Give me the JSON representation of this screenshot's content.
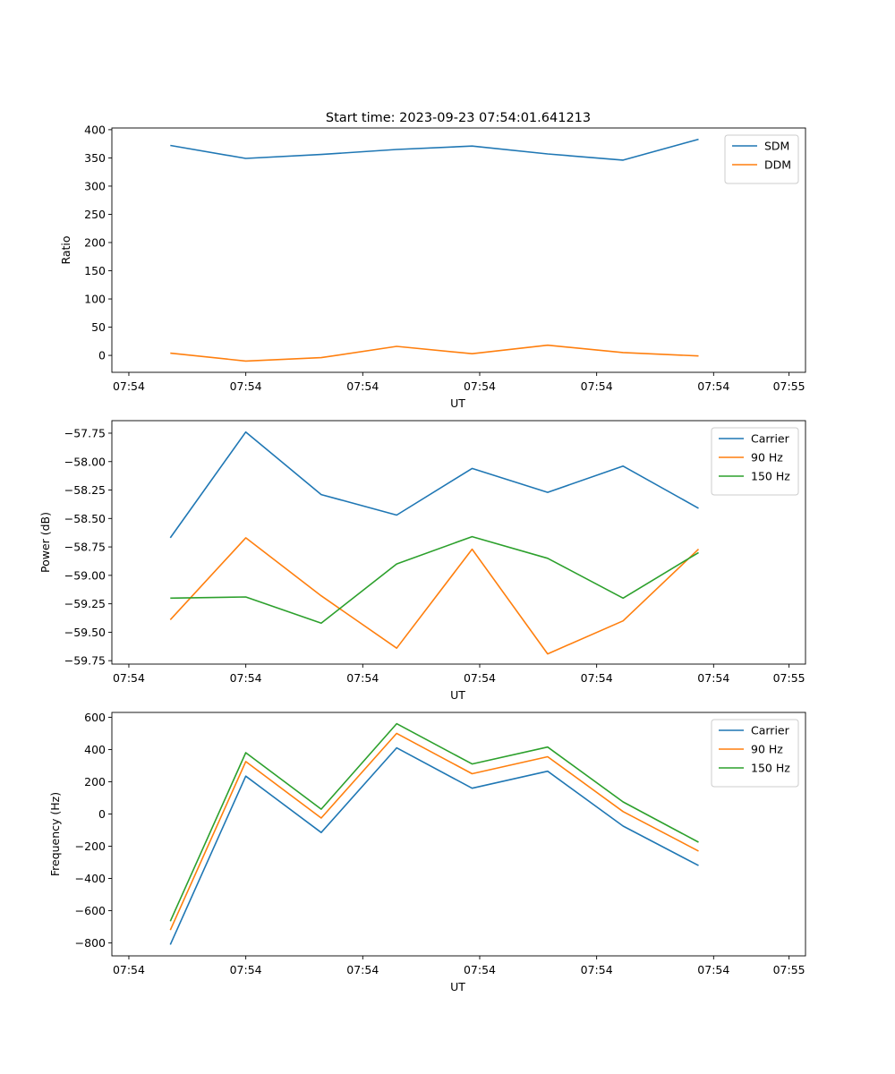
{
  "figure_title": "Start time: 2023-09-23 07:54:01.641213",
  "colors": {
    "blue": "#1f77b4",
    "orange": "#ff7f0e",
    "green": "#2ca02c"
  },
  "chart_data": [
    {
      "type": "line",
      "title": "Start time: 2023-09-23 07:54:01.641213",
      "xlabel": "UT",
      "ylabel": "Ratio",
      "x": [
        1,
        2,
        3,
        4,
        5,
        6,
        7,
        8
      ],
      "xlim": [
        0.225,
        9.418
      ],
      "xticks": [
        0.45,
        2,
        3.55,
        5.1,
        6.65,
        8.2,
        9.2
      ],
      "xticklabels": [
        "07:54",
        "07:54",
        "07:54",
        "07:54",
        "07:54",
        "07:54",
        "07:55"
      ],
      "ylim": [
        -30,
        403
      ],
      "yticks": [
        0,
        50,
        100,
        150,
        200,
        250,
        300,
        350,
        400
      ],
      "yticklabels": [
        "0",
        "50",
        "100",
        "150",
        "200",
        "250",
        "300",
        "350",
        "400"
      ],
      "legend_position": "top-right",
      "series": [
        {
          "name": "SDM",
          "color": "#1f77b4",
          "values": [
            372,
            349,
            356,
            365,
            371,
            357,
            346,
            383
          ]
        },
        {
          "name": "DDM",
          "color": "#ff7f0e",
          "values": [
            4,
            -10,
            -4,
            16,
            3,
            18,
            5,
            -1
          ]
        }
      ]
    },
    {
      "type": "line",
      "title": "",
      "xlabel": "UT",
      "ylabel": "Power (dB)",
      "x": [
        1,
        2,
        3,
        4,
        5,
        6,
        7,
        8
      ],
      "xlim": [
        0.225,
        9.418
      ],
      "xticks": [
        0.45,
        2,
        3.55,
        5.1,
        6.65,
        8.2,
        9.2
      ],
      "xticklabels": [
        "07:54",
        "07:54",
        "07:54",
        "07:54",
        "07:54",
        "07:54",
        "07:55"
      ],
      "ylim": [
        -59.78,
        -57.64
      ],
      "yticks": [
        -59.75,
        -59.5,
        -59.25,
        -59.0,
        -58.75,
        -58.5,
        -58.25,
        -58.0,
        -57.75
      ],
      "yticklabels": [
        "−59.75",
        "−59.50",
        "−59.25",
        "−59.00",
        "−58.75",
        "−58.50",
        "−58.25",
        "−58.00",
        "−57.75"
      ],
      "legend_position": "top-right",
      "series": [
        {
          "name": "Carrier",
          "color": "#1f77b4",
          "values": [
            -58.67,
            -57.74,
            -58.29,
            -58.47,
            -58.06,
            -58.27,
            -58.04,
            -58.41
          ]
        },
        {
          "name": "90 Hz",
          "color": "#ff7f0e",
          "values": [
            -59.39,
            -58.67,
            -59.18,
            -59.64,
            -58.77,
            -59.69,
            -59.4,
            -58.77
          ]
        },
        {
          "name": "150 Hz",
          "color": "#2ca02c",
          "values": [
            -59.2,
            -59.19,
            -59.42,
            -58.9,
            -58.66,
            -58.85,
            -59.2,
            -58.8
          ]
        }
      ]
    },
    {
      "type": "line",
      "title": "",
      "xlabel": "UT",
      "ylabel": "Frequency (Hz)",
      "x": [
        1,
        2,
        3,
        4,
        5,
        6,
        7,
        8
      ],
      "xlim": [
        0.225,
        9.418
      ],
      "xticks": [
        0.45,
        2,
        3.55,
        5.1,
        6.65,
        8.2,
        9.2
      ],
      "xticklabels": [
        "07:54",
        "07:54",
        "07:54",
        "07:54",
        "07:54",
        "07:54",
        "07:55"
      ],
      "ylim": [
        -880,
        630
      ],
      "yticks": [
        -800,
        -600,
        -400,
        -200,
        0,
        200,
        400,
        600
      ],
      "yticklabels": [
        "−800",
        "−600",
        "−400",
        "−200",
        "0",
        "200",
        "400",
        "600"
      ],
      "legend_position": "top-right",
      "series": [
        {
          "name": "Carrier",
          "color": "#1f77b4",
          "values": [
            -810,
            235,
            -115,
            410,
            160,
            265,
            -75,
            -320
          ]
        },
        {
          "name": "90 Hz",
          "color": "#ff7f0e",
          "values": [
            -720,
            325,
            -25,
            500,
            250,
            355,
            15,
            -230
          ]
        },
        {
          "name": "150 Hz",
          "color": "#2ca02c",
          "values": [
            -665,
            380,
            30,
            560,
            310,
            415,
            75,
            -175
          ]
        }
      ]
    }
  ]
}
